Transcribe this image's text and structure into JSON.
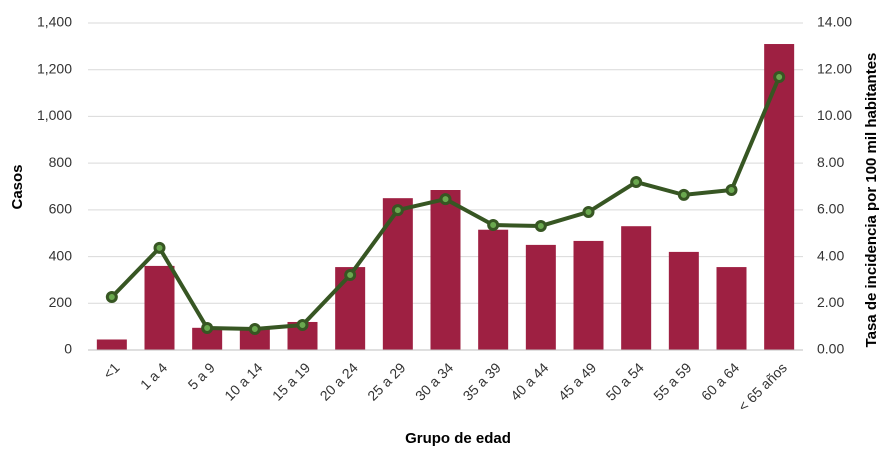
{
  "chart_data": {
    "type": "bar",
    "x_label": "Grupo de edad",
    "y_label": "Casos",
    "y2_label": "Tasa de incidencia por 100 mil habitantes",
    "categories": [
      "<1",
      "1 a 4",
      "5 a 9",
      "10 a 14",
      "15 a 19",
      "20 a 24",
      "25 a 29",
      "30 a 34",
      "35 a 39",
      "40 a 44",
      "45 a 49",
      "50 a 54",
      "55 a 59",
      "60 a 64",
      "< 65 años"
    ],
    "series": [
      {
        "type": "bar",
        "color": "#9e2042",
        "values": [
          45,
          360,
          95,
          90,
          120,
          355,
          650,
          685,
          515,
          450,
          467,
          530,
          420,
          355,
          1310
        ]
      },
      {
        "type": "line",
        "axis": "y2",
        "color": "#375623",
        "marker_color": "#6aa84f",
        "values": [
          2.27,
          4.37,
          0.94,
          0.9,
          1.07,
          3.21,
          5.99,
          6.46,
          5.35,
          5.31,
          5.91,
          7.19,
          6.64,
          6.85,
          11.69
        ]
      }
    ],
    "ylim": [
      0,
      1400
    ],
    "yticks": [
      0,
      200,
      400,
      600,
      800,
      {
        "value": 1000,
        "label": "1,000"
      },
      {
        "value": 1200,
        "label": "1,200"
      },
      {
        "value": 1400,
        "label": "1,400"
      }
    ],
    "y2lim": [
      0,
      14
    ],
    "y2ticks": [
      {
        "value": 0,
        "label": "0.00"
      },
      {
        "value": 2,
        "label": "2.00"
      },
      {
        "value": 4,
        "label": "4.00"
      },
      {
        "value": 6,
        "label": "6.00"
      },
      {
        "value": 8,
        "label": "8.00"
      },
      {
        "value": 10,
        "label": "10.00"
      },
      {
        "value": 12,
        "label": "12.00"
      },
      {
        "value": 14,
        "label": "14.00"
      }
    ],
    "grid": true
  }
}
